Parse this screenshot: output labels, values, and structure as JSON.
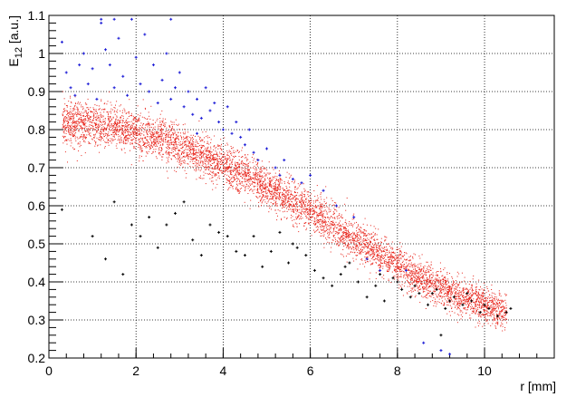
{
  "chart_data": {
    "type": "scatter",
    "title": "",
    "xlabel": "r [mm]",
    "ylabel": {
      "main": "E",
      "sub": "12",
      "suffix": " [a.u.]"
    },
    "xlim": [
      0,
      11.6
    ],
    "ylim": [
      0.2,
      1.1
    ],
    "x_ticks": [
      {
        "value": 0,
        "label": "0"
      },
      {
        "value": 2,
        "label": "2"
      },
      {
        "value": 4,
        "label": "4"
      },
      {
        "value": 6,
        "label": "6"
      },
      {
        "value": 8,
        "label": "8"
      },
      {
        "value": 10,
        "label": "10"
      }
    ],
    "y_ticks": [
      {
        "value": 0.2,
        "label": "0.2"
      },
      {
        "value": 0.3,
        "label": "0.3"
      },
      {
        "value": 0.4,
        "label": "0.4"
      },
      {
        "value": 0.5,
        "label": "0.5"
      },
      {
        "value": 0.6,
        "label": "0.6"
      },
      {
        "value": 0.7,
        "label": "0.7"
      },
      {
        "value": 0.8,
        "label": "0.8"
      },
      {
        "value": 0.9,
        "label": "0.9"
      },
      {
        "value": 1.0,
        "label": "1"
      },
      {
        "value": 1.1,
        "label": "1.1"
      }
    ],
    "grid": true,
    "grid_style": "dotted",
    "legend": "none",
    "series": [
      {
        "color": "#e8241a",
        "marker": "dot",
        "density": "dense",
        "trend": [
          [
            0.3,
            0.82
          ],
          [
            1.5,
            0.81
          ],
          [
            2.5,
            0.78
          ],
          [
            3.5,
            0.73
          ],
          [
            4.5,
            0.68
          ],
          [
            5.5,
            0.62
          ],
          [
            6.5,
            0.55
          ],
          [
            7.5,
            0.48
          ],
          [
            8.5,
            0.41
          ],
          [
            9.5,
            0.36
          ],
          [
            10.5,
            0.32
          ]
        ],
        "points": [
          [
            0.5,
            0.83
          ],
          [
            1.0,
            0.81
          ],
          [
            1.5,
            0.82
          ],
          [
            2.0,
            0.8
          ],
          [
            2.5,
            0.78
          ],
          [
            3.0,
            0.76
          ],
          [
            3.5,
            0.73
          ],
          [
            4.0,
            0.71
          ],
          [
            4.5,
            0.68
          ],
          [
            5.0,
            0.65
          ],
          [
            5.5,
            0.62
          ],
          [
            6.0,
            0.59
          ],
          [
            6.5,
            0.55
          ],
          [
            7.0,
            0.51
          ],
          [
            7.5,
            0.48
          ],
          [
            8.0,
            0.44
          ],
          [
            8.5,
            0.41
          ],
          [
            9.0,
            0.38
          ],
          [
            9.5,
            0.36
          ],
          [
            10.0,
            0.34
          ],
          [
            10.5,
            0.32
          ]
        ]
      },
      {
        "color": "#1a1ad6",
        "marker": "cross",
        "points": [
          [
            0.3,
            1.03
          ],
          [
            0.4,
            0.95
          ],
          [
            0.5,
            0.91
          ],
          [
            0.6,
            0.89
          ],
          [
            0.8,
            1.0
          ],
          [
            0.9,
            0.92
          ],
          [
            1.0,
            0.96
          ],
          [
            1.1,
            0.88
          ],
          [
            1.2,
            1.08
          ],
          [
            1.3,
            1.01
          ],
          [
            1.4,
            0.97
          ],
          [
            1.5,
            0.91
          ],
          [
            1.6,
            1.04
          ],
          [
            1.7,
            0.94
          ],
          [
            1.8,
            0.89
          ],
          [
            1.9,
            1.09
          ],
          [
            2.0,
            0.99
          ],
          [
            2.1,
            0.92
          ],
          [
            2.2,
            1.05
          ],
          [
            2.3,
            0.9
          ],
          [
            2.4,
            0.97
          ],
          [
            2.5,
            0.87
          ],
          [
            2.6,
            0.93
          ],
          [
            2.7,
            1.0
          ],
          [
            2.8,
            0.88
          ],
          [
            2.9,
            0.91
          ],
          [
            3.0,
            0.95
          ],
          [
            3.1,
            0.86
          ],
          [
            3.2,
            0.9
          ],
          [
            3.3,
            0.84
          ],
          [
            3.4,
            0.88
          ],
          [
            3.5,
            0.83
          ],
          [
            3.6,
            0.91
          ],
          [
            3.7,
            0.85
          ],
          [
            3.8,
            0.87
          ],
          [
            3.9,
            0.82
          ],
          [
            4.0,
            0.8
          ],
          [
            4.1,
            0.86
          ],
          [
            4.2,
            0.79
          ],
          [
            4.3,
            0.82
          ],
          [
            4.4,
            0.78
          ],
          [
            4.5,
            0.76
          ],
          [
            4.6,
            0.8
          ],
          [
            4.7,
            0.74
          ],
          [
            4.8,
            0.72
          ],
          [
            5.0,
            0.75
          ],
          [
            5.2,
            0.7
          ],
          [
            5.4,
            0.72
          ],
          [
            5.6,
            0.67
          ],
          [
            5.8,
            0.66
          ],
          [
            6.0,
            0.68
          ],
          [
            6.3,
            0.64
          ],
          [
            6.6,
            0.6
          ],
          [
            7.0,
            0.57
          ],
          [
            7.3,
            0.46
          ],
          [
            7.6,
            0.43
          ],
          [
            8.2,
            0.43
          ],
          [
            8.6,
            0.24
          ],
          [
            9.0,
            0.22
          ],
          [
            9.2,
            0.21
          ],
          [
            1.2,
            1.09
          ],
          [
            1.5,
            1.09
          ],
          [
            2.8,
            1.09
          ],
          [
            0.7,
            0.97
          ],
          [
            3.4,
            0.79
          ],
          [
            5.3,
            0.68
          ]
        ]
      },
      {
        "color": "#000000",
        "marker": "cross",
        "points": [
          [
            0.3,
            0.59
          ],
          [
            1.0,
            0.52
          ],
          [
            1.3,
            0.46
          ],
          [
            1.5,
            0.61
          ],
          [
            1.7,
            0.42
          ],
          [
            1.9,
            0.55
          ],
          [
            2.1,
            0.52
          ],
          [
            2.3,
            0.57
          ],
          [
            2.5,
            0.49
          ],
          [
            2.7,
            0.55
          ],
          [
            2.9,
            0.58
          ],
          [
            3.1,
            0.61
          ],
          [
            3.3,
            0.51
          ],
          [
            3.5,
            0.47
          ],
          [
            3.7,
            0.55
          ],
          [
            3.9,
            0.53
          ],
          [
            4.1,
            0.52
          ],
          [
            4.3,
            0.48
          ],
          [
            4.5,
            0.47
          ],
          [
            4.7,
            0.52
          ],
          [
            4.9,
            0.44
          ],
          [
            5.1,
            0.48
          ],
          [
            5.3,
            0.53
          ],
          [
            5.5,
            0.45
          ],
          [
            5.7,
            0.49
          ],
          [
            5.9,
            0.47
          ],
          [
            6.1,
            0.43
          ],
          [
            6.3,
            0.41
          ],
          [
            6.5,
            0.39
          ],
          [
            6.7,
            0.42
          ],
          [
            6.9,
            0.45
          ],
          [
            7.1,
            0.4
          ],
          [
            7.3,
            0.36
          ],
          [
            7.5,
            0.39
          ],
          [
            7.7,
            0.35
          ],
          [
            7.9,
            0.41
          ],
          [
            8.1,
            0.38
          ],
          [
            8.3,
            0.36
          ],
          [
            8.5,
            0.37
          ],
          [
            8.7,
            0.34
          ],
          [
            8.9,
            0.38
          ],
          [
            9.1,
            0.33
          ],
          [
            9.3,
            0.36
          ],
          [
            9.5,
            0.34
          ],
          [
            9.7,
            0.35
          ],
          [
            9.9,
            0.32
          ],
          [
            10.1,
            0.33
          ],
          [
            10.3,
            0.31
          ],
          [
            10.5,
            0.32
          ],
          [
            10.6,
            0.33
          ],
          [
            8.0,
            0.4
          ],
          [
            8.4,
            0.39
          ],
          [
            8.8,
            0.37
          ],
          [
            9.2,
            0.35
          ],
          [
            9.6,
            0.37
          ],
          [
            10.0,
            0.34
          ],
          [
            7.6,
            0.42
          ],
          [
            6.8,
            0.44
          ],
          [
            5.6,
            0.5
          ],
          [
            9.0,
            0.26
          ]
        ]
      }
    ]
  }
}
